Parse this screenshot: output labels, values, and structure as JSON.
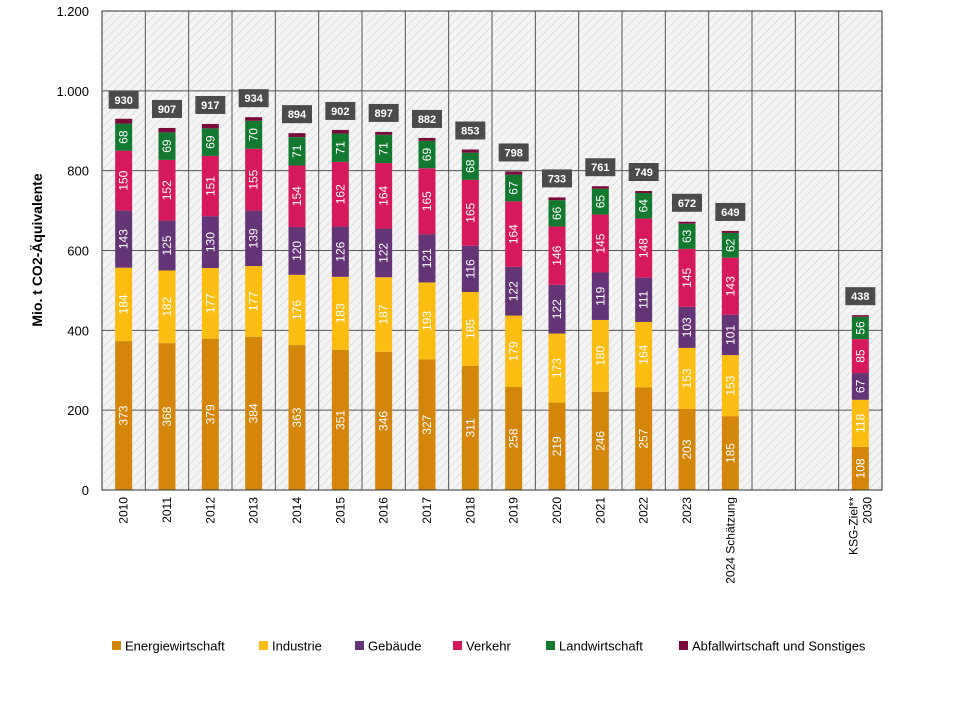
{
  "chart_data": {
    "type": "bar",
    "stacked": true,
    "ylabel": "Mio. t CO2-Äquivalente",
    "ylim": [
      0,
      1200
    ],
    "yticks": [
      0,
      200,
      400,
      600,
      800,
      1000,
      1200
    ],
    "ytick_labels": [
      "0",
      "200",
      "400",
      "600",
      "800",
      "1.000",
      "1.200"
    ],
    "categories": [
      {
        "label": [
          "2010"
        ]
      },
      {
        "label": [
          "2011"
        ]
      },
      {
        "label": [
          "2012"
        ]
      },
      {
        "label": [
          "2013"
        ]
      },
      {
        "label": [
          "2014"
        ]
      },
      {
        "label": [
          "2015"
        ]
      },
      {
        "label": [
          "2016"
        ]
      },
      {
        "label": [
          "2017"
        ]
      },
      {
        "label": [
          "2018"
        ]
      },
      {
        "label": [
          "2019"
        ]
      },
      {
        "label": [
          "2020"
        ]
      },
      {
        "label": [
          "2021"
        ]
      },
      {
        "label": [
          "2022"
        ]
      },
      {
        "label": [
          "2023"
        ]
      },
      {
        "label": [
          "2024 Schätzung"
        ]
      },
      {
        "label": [
          ""
        ]
      },
      {
        "label": [
          ""
        ]
      },
      {
        "label": [
          "KSG-Ziel**",
          "2030"
        ]
      }
    ],
    "series": [
      {
        "name": "Energiewirtschaft",
        "color": "#d4860b",
        "values": [
          373,
          368,
          379,
          384,
          363,
          351,
          346,
          327,
          311,
          258,
          219,
          246,
          257,
          203,
          185,
          null,
          null,
          108
        ]
      },
      {
        "name": "Industrie",
        "color": "#fbbd12",
        "values": [
          184,
          182,
          177,
          177,
          176,
          183,
          187,
          193,
          185,
          179,
          173,
          180,
          164,
          153,
          153,
          null,
          null,
          118
        ]
      },
      {
        "name": "Gebäude",
        "color": "#653476",
        "values": [
          143,
          125,
          130,
          139,
          120,
          126,
          122,
          121,
          116,
          122,
          122,
          119,
          111,
          103,
          101,
          null,
          null,
          67
        ]
      },
      {
        "name": "Verkehr",
        "color": "#d6195c",
        "values": [
          150,
          152,
          151,
          155,
          154,
          162,
          164,
          165,
          165,
          164,
          146,
          145,
          148,
          145,
          143,
          null,
          null,
          85
        ]
      },
      {
        "name": "Landwirtschaft",
        "color": "#13792e",
        "values": [
          68,
          69,
          69,
          70,
          71,
          71,
          71,
          69,
          68,
          67,
          66,
          65,
          64,
          63,
          62,
          null,
          null,
          56
        ]
      },
      {
        "name": "Abfallwirtschaft und Sonstiges",
        "color": "#7b0a3c",
        "values": [
          12,
          11,
          11,
          9,
          10,
          9,
          7,
          7,
          8,
          8,
          7,
          6,
          5,
          5,
          5,
          null,
          null,
          4
        ]
      }
    ],
    "totals": [
      930,
      907,
      917,
      934,
      894,
      902,
      897,
      882,
      853,
      798,
      733,
      761,
      749,
      672,
      649,
      null,
      null,
      438
    ],
    "legend_position": "bottom"
  }
}
